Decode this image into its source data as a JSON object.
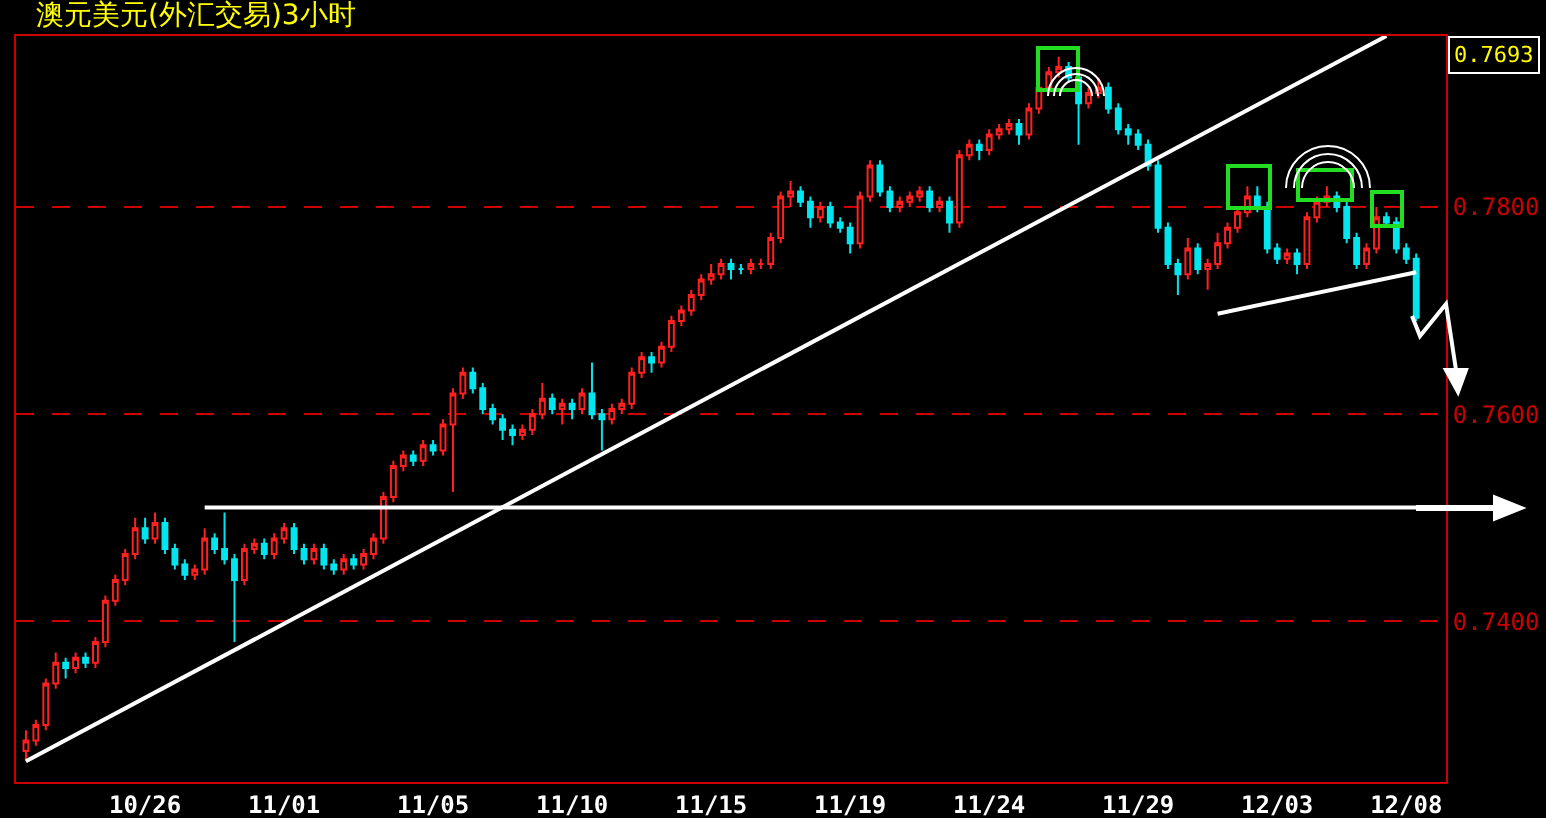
{
  "chart_data": {
    "type": "candlestick",
    "title": "澳元美元(外汇交易)3小时",
    "annotations": [
      "0.7693"
    ],
    "categories": [
      null,
      null,
      null,
      null,
      null,
      null,
      null,
      null,
      null,
      null,
      null,
      null,
      "10/26",
      null,
      null,
      null,
      null,
      null,
      null,
      null,
      null,
      null,
      null,
      null,
      null,
      null,
      "11/01",
      null,
      null,
      null,
      null,
      null,
      null,
      null,
      null,
      null,
      null,
      null,
      null,
      null,
      null,
      "11/05",
      null,
      null,
      null,
      null,
      null,
      null,
      null,
      null,
      null,
      null,
      null,
      null,
      null,
      "11/10",
      null,
      null,
      null,
      null,
      null,
      null,
      null,
      null,
      null,
      null,
      null,
      null,
      null,
      "11/15",
      null,
      null,
      null,
      null,
      null,
      null,
      null,
      null,
      null,
      null,
      null,
      null,
      null,
      "11/19",
      null,
      null,
      null,
      null,
      null,
      null,
      null,
      null,
      null,
      null,
      null,
      null,
      null,
      "11/24",
      null,
      null,
      null,
      null,
      null,
      null,
      null,
      null,
      null,
      null,
      null,
      null,
      null,
      null,
      "11/29",
      null,
      null,
      null,
      null,
      null,
      null,
      null,
      null,
      null,
      null,
      null,
      null,
      null,
      "12/03",
      null,
      null,
      null,
      null,
      null,
      null,
      null,
      null,
      null,
      null,
      null,
      null,
      "12/08",
      null
    ],
    "ohlc": [
      [
        0.7275,
        0.7295,
        0.7265,
        0.7285
      ],
      [
        0.7285,
        0.7305,
        0.728,
        0.73
      ],
      [
        0.73,
        0.7345,
        0.7295,
        0.734
      ],
      [
        0.734,
        0.737,
        0.7335,
        0.736
      ],
      [
        0.736,
        0.7365,
        0.7345,
        0.7355
      ],
      [
        0.7355,
        0.737,
        0.735,
        0.7365
      ],
      [
        0.7365,
        0.737,
        0.7355,
        0.736
      ],
      [
        0.736,
        0.7385,
        0.7355,
        0.738
      ],
      [
        0.738,
        0.7425,
        0.7375,
        0.742
      ],
      [
        0.742,
        0.7445,
        0.7415,
        0.744
      ],
      [
        0.744,
        0.747,
        0.7435,
        0.7465
      ],
      [
        0.7465,
        0.75,
        0.746,
        0.749
      ],
      [
        0.749,
        0.75,
        0.7475,
        0.748
      ],
      [
        0.748,
        0.7505,
        0.7475,
        0.7495
      ],
      [
        0.7495,
        0.75,
        0.7465,
        0.747
      ],
      [
        0.747,
        0.7475,
        0.745,
        0.7455
      ],
      [
        0.7455,
        0.746,
        0.744,
        0.7445
      ],
      [
        0.7445,
        0.7455,
        0.744,
        0.745
      ],
      [
        0.745,
        0.749,
        0.7445,
        0.748
      ],
      [
        0.748,
        0.7485,
        0.7465,
        0.747
      ],
      [
        0.747,
        0.7505,
        0.7455,
        0.746
      ],
      [
        0.746,
        0.7465,
        0.738,
        0.744
      ],
      [
        0.744,
        0.7475,
        0.7435,
        0.747
      ],
      [
        0.747,
        0.748,
        0.7465,
        0.7475
      ],
      [
        0.7475,
        0.748,
        0.746,
        0.7465
      ],
      [
        0.7465,
        0.7485,
        0.746,
        0.748
      ],
      [
        0.748,
        0.7495,
        0.7475,
        0.749
      ],
      [
        0.749,
        0.7495,
        0.7465,
        0.747
      ],
      [
        0.747,
        0.7475,
        0.7455,
        0.746
      ],
      [
        0.746,
        0.7475,
        0.7455,
        0.747
      ],
      [
        0.747,
        0.7475,
        0.745,
        0.7455
      ],
      [
        0.7455,
        0.746,
        0.7445,
        0.745
      ],
      [
        0.745,
        0.7465,
        0.7445,
        0.746
      ],
      [
        0.746,
        0.7465,
        0.745,
        0.7455
      ],
      [
        0.7455,
        0.747,
        0.745,
        0.7465
      ],
      [
        0.7465,
        0.7485,
        0.746,
        0.748
      ],
      [
        0.748,
        0.7525,
        0.7475,
        0.752
      ],
      [
        0.752,
        0.7555,
        0.7515,
        0.755
      ],
      [
        0.755,
        0.7565,
        0.7545,
        0.756
      ],
      [
        0.756,
        0.7565,
        0.755,
        0.7555
      ],
      [
        0.7555,
        0.7575,
        0.755,
        0.757
      ],
      [
        0.757,
        0.7575,
        0.756,
        0.7565
      ],
      [
        0.7565,
        0.7595,
        0.756,
        0.759
      ],
      [
        0.759,
        0.7625,
        0.7525,
        0.762
      ],
      [
        0.762,
        0.7645,
        0.7615,
        0.764
      ],
      [
        0.764,
        0.7645,
        0.762,
        0.7625
      ],
      [
        0.7625,
        0.763,
        0.76,
        0.7605
      ],
      [
        0.7605,
        0.761,
        0.759,
        0.7595
      ],
      [
        0.7595,
        0.76,
        0.7575,
        0.7585
      ],
      [
        0.7585,
        0.759,
        0.757,
        0.758
      ],
      [
        0.758,
        0.759,
        0.7575,
        0.7585
      ],
      [
        0.7585,
        0.7605,
        0.758,
        0.76
      ],
      [
        0.76,
        0.763,
        0.7595,
        0.7615
      ],
      [
        0.7615,
        0.762,
        0.76,
        0.7605
      ],
      [
        0.7605,
        0.7615,
        0.759,
        0.761
      ],
      [
        0.761,
        0.7615,
        0.7595,
        0.7605
      ],
      [
        0.7605,
        0.7625,
        0.76,
        0.762
      ],
      [
        0.762,
        0.765,
        0.7595,
        0.76
      ],
      [
        0.76,
        0.7605,
        0.7565,
        0.7595
      ],
      [
        0.7595,
        0.761,
        0.759,
        0.7605
      ],
      [
        0.7605,
        0.7615,
        0.76,
        0.761
      ],
      [
        0.761,
        0.7645,
        0.7605,
        0.764
      ],
      [
        0.764,
        0.766,
        0.7635,
        0.7655
      ],
      [
        0.7655,
        0.766,
        0.764,
        0.765
      ],
      [
        0.765,
        0.767,
        0.7645,
        0.7665
      ],
      [
        0.7665,
        0.7695,
        0.766,
        0.769
      ],
      [
        0.769,
        0.7705,
        0.7685,
        0.77
      ],
      [
        0.77,
        0.772,
        0.7695,
        0.7715
      ],
      [
        0.7715,
        0.7735,
        0.771,
        0.773
      ],
      [
        0.773,
        0.7745,
        0.7725,
        0.7735
      ],
      [
        0.7735,
        0.775,
        0.773,
        0.7745
      ],
      [
        0.7745,
        0.775,
        0.773,
        0.774
      ],
      [
        0.774,
        0.7745,
        0.7735,
        0.774
      ],
      [
        0.774,
        0.775,
        0.7735,
        0.7745
      ],
      [
        0.7745,
        0.775,
        0.774,
        0.7745
      ],
      [
        0.7745,
        0.7775,
        0.774,
        0.777
      ],
      [
        0.777,
        0.7815,
        0.7765,
        0.781
      ],
      [
        0.781,
        0.7825,
        0.78,
        0.7815
      ],
      [
        0.7815,
        0.782,
        0.78,
        0.7805
      ],
      [
        0.7805,
        0.781,
        0.778,
        0.779
      ],
      [
        0.779,
        0.7805,
        0.7785,
        0.78
      ],
      [
        0.78,
        0.7805,
        0.778,
        0.7785
      ],
      [
        0.7785,
        0.779,
        0.7775,
        0.778
      ],
      [
        0.778,
        0.7785,
        0.7755,
        0.7765
      ],
      [
        0.7765,
        0.7815,
        0.776,
        0.781
      ],
      [
        0.781,
        0.7845,
        0.7805,
        0.784
      ],
      [
        0.784,
        0.7845,
        0.781,
        0.7815
      ],
      [
        0.7815,
        0.782,
        0.7795,
        0.78
      ],
      [
        0.78,
        0.781,
        0.7795,
        0.7805
      ],
      [
        0.7805,
        0.7815,
        0.78,
        0.781
      ],
      [
        0.781,
        0.782,
        0.7805,
        0.7815
      ],
      [
        0.7815,
        0.782,
        0.7795,
        0.78
      ],
      [
        0.78,
        0.781,
        0.7795,
        0.7805
      ],
      [
        0.7805,
        0.781,
        0.7775,
        0.7785
      ],
      [
        0.7785,
        0.7855,
        0.778,
        0.785
      ],
      [
        0.785,
        0.7865,
        0.7845,
        0.786
      ],
      [
        0.786,
        0.7865,
        0.7845,
        0.7855
      ],
      [
        0.7855,
        0.7875,
        0.785,
        0.787
      ],
      [
        0.787,
        0.788,
        0.7865,
        0.7875
      ],
      [
        0.7875,
        0.7885,
        0.787,
        0.788
      ],
      [
        0.788,
        0.7885,
        0.786,
        0.787
      ],
      [
        0.787,
        0.79,
        0.7865,
        0.7895
      ],
      [
        0.7895,
        0.792,
        0.789,
        0.7915
      ],
      [
        0.7915,
        0.7935,
        0.791,
        0.793
      ],
      [
        0.793,
        0.7945,
        0.7925,
        0.7935
      ],
      [
        0.7935,
        0.794,
        0.792,
        0.7925
      ],
      [
        0.7925,
        0.793,
        0.786,
        0.79
      ],
      [
        0.79,
        0.7915,
        0.7895,
        0.791
      ],
      [
        0.791,
        0.7925,
        0.7905,
        0.7915
      ],
      [
        0.7915,
        0.792,
        0.789,
        0.7895
      ],
      [
        0.7895,
        0.79,
        0.787,
        0.7875
      ],
      [
        0.7875,
        0.788,
        0.786,
        0.787
      ],
      [
        0.787,
        0.7875,
        0.7855,
        0.786
      ],
      [
        0.786,
        0.7865,
        0.7835,
        0.784
      ],
      [
        0.784,
        0.7845,
        0.7775,
        0.778
      ],
      [
        0.778,
        0.7785,
        0.774,
        0.7745
      ],
      [
        0.7745,
        0.775,
        0.7715,
        0.7735
      ],
      [
        0.7735,
        0.777,
        0.773,
        0.776
      ],
      [
        0.776,
        0.7765,
        0.7735,
        0.774
      ],
      [
        0.774,
        0.775,
        0.772,
        0.7745
      ],
      [
        0.7745,
        0.7775,
        0.774,
        0.7765
      ],
      [
        0.7765,
        0.7785,
        0.776,
        0.778
      ],
      [
        0.778,
        0.78,
        0.7775,
        0.7795
      ],
      [
        0.7795,
        0.782,
        0.779,
        0.781
      ],
      [
        0.781,
        0.782,
        0.7795,
        0.78
      ],
      [
        0.78,
        0.7805,
        0.7755,
        0.776
      ],
      [
        0.776,
        0.7765,
        0.7745,
        0.775
      ],
      [
        0.775,
        0.776,
        0.7745,
        0.7755
      ],
      [
        0.7755,
        0.776,
        0.7735,
        0.7745
      ],
      [
        0.7745,
        0.7795,
        0.774,
        0.779
      ],
      [
        0.779,
        0.781,
        0.7785,
        0.7805
      ],
      [
        0.7805,
        0.782,
        0.78,
        0.781
      ],
      [
        0.781,
        0.7815,
        0.7795,
        0.78
      ],
      [
        0.78,
        0.7805,
        0.7765,
        0.777
      ],
      [
        0.777,
        0.7775,
        0.774,
        0.7745
      ],
      [
        0.7745,
        0.7765,
        0.774,
        0.776
      ],
      [
        0.776,
        0.78,
        0.7755,
        0.779
      ],
      [
        0.779,
        0.7795,
        0.778,
        0.7785
      ],
      [
        0.7785,
        0.779,
        0.7755,
        0.776
      ],
      [
        0.776,
        0.7765,
        0.7745,
        0.775
      ],
      [
        0.775,
        0.7755,
        0.769,
        0.7693
      ]
    ],
    "series": [
      {
        "type": "line",
        "color": "#ffffff",
        "values": [
          0.7265,
          null,
          null,
          null,
          null,
          null,
          null,
          null,
          null,
          null,
          null,
          null,
          null,
          null,
          null,
          null,
          null,
          null,
          null,
          null,
          null,
          null,
          null,
          null,
          null,
          null,
          null,
          null,
          null,
          null,
          null,
          null,
          null,
          null,
          null,
          null,
          null,
          null,
          null,
          null,
          null,
          null,
          null,
          null,
          null,
          null,
          null,
          null,
          null,
          null,
          null,
          null,
          null,
          null,
          null,
          null,
          null,
          null,
          null,
          null,
          null,
          null,
          null,
          null,
          null,
          null,
          null,
          null,
          null,
          null,
          null,
          null,
          null,
          null,
          null,
          null,
          null,
          null,
          null,
          null,
          null,
          null,
          null,
          null,
          null,
          null,
          null,
          null,
          null,
          null,
          null,
          null,
          null,
          null,
          null,
          null,
          null,
          null,
          null,
          null,
          null,
          null,
          null,
          null,
          null,
          null,
          null,
          null,
          null,
          null,
          null,
          null,
          null,
          null,
          null,
          null,
          null,
          null,
          null,
          null,
          null,
          null,
          null,
          null,
          null,
          null,
          null,
          null,
          null,
          null,
          null,
          null,
          null,
          null,
          null,
          null,
          null,
          0.7965,
          null,
          null,
          null
        ]
      },
      {
        "type": "line",
        "color": "#ffffff",
        "values": [
          null,
          null,
          null,
          null,
          null,
          null,
          null,
          null,
          null,
          null,
          null,
          null,
          null,
          null,
          null,
          null,
          null,
          null,
          null,
          null,
          null,
          null,
          null,
          null,
          null,
          null,
          null,
          null,
          null,
          null,
          null,
          null,
          null,
          null,
          null,
          null,
          null,
          null,
          null,
          null,
          null,
          null,
          null,
          null,
          null,
          null,
          null,
          null,
          null,
          null,
          null,
          null,
          null,
          null,
          null,
          null,
          null,
          null,
          null,
          null,
          null,
          null,
          null,
          null,
          null,
          null,
          null,
          null,
          null,
          null,
          null,
          null,
          null,
          null,
          null,
          null,
          null,
          null,
          null,
          null,
          null,
          null,
          null,
          null,
          null,
          null,
          null,
          null,
          null,
          null,
          null,
          null,
          null,
          null,
          null,
          null,
          null,
          null,
          null,
          null,
          null,
          null,
          null,
          null,
          null,
          null,
          null,
          null,
          null,
          null,
          null,
          null,
          null,
          null,
          null,
          null,
          null,
          null,
          null,
          null,
          0.7697,
          null,
          null,
          null,
          null,
          null,
          null,
          null,
          null,
          null,
          null,
          null,
          null,
          null,
          null,
          null,
          null,
          null,
          null,
          null,
          0.7737
        ]
      },
      {
        "type": "line",
        "color": "#ffffff",
        "values": [
          null,
          null,
          null,
          null,
          null,
          null,
          null,
          null,
          null,
          null,
          null,
          null,
          null,
          null,
          null,
          null,
          null,
          null,
          0.751,
          null,
          null,
          null,
          null,
          null,
          null,
          null,
          null,
          null,
          null,
          null,
          null,
          null,
          null,
          null,
          null,
          null,
          null,
          null,
          null,
          null,
          null,
          null,
          null,
          null,
          null,
          null,
          null,
          null,
          null,
          null,
          null,
          null,
          null,
          null,
          null,
          null,
          null,
          null,
          null,
          null,
          null,
          null,
          null,
          null,
          null,
          null,
          null,
          null,
          null,
          null,
          null,
          null,
          null,
          null,
          null,
          null,
          null,
          null,
          null,
          null,
          null,
          null,
          null,
          null,
          null,
          null,
          null,
          null,
          null,
          null,
          null,
          null,
          null,
          null,
          null,
          null,
          null,
          null,
          null,
          null,
          null,
          null,
          null,
          null,
          null,
          null,
          null,
          null,
          null,
          null,
          null,
          null,
          null,
          null,
          null,
          null,
          null,
          null,
          null,
          null,
          null,
          null,
          null,
          null,
          null,
          null,
          null,
          null,
          null,
          null,
          null,
          null,
          null,
          null,
          null,
          null,
          null,
          null,
          null,
          null,
          0.751
        ]
      }
    ],
    "ylim": [
      0.7245,
      0.7965
    ],
    "yticks": [
      {
        "value": 0.74,
        "label": "0.7400"
      },
      {
        "value": 0.76,
        "label": "0.7600"
      },
      {
        "value": 0.78,
        "label": "0.7800"
      }
    ],
    "grid": "y"
  }
}
